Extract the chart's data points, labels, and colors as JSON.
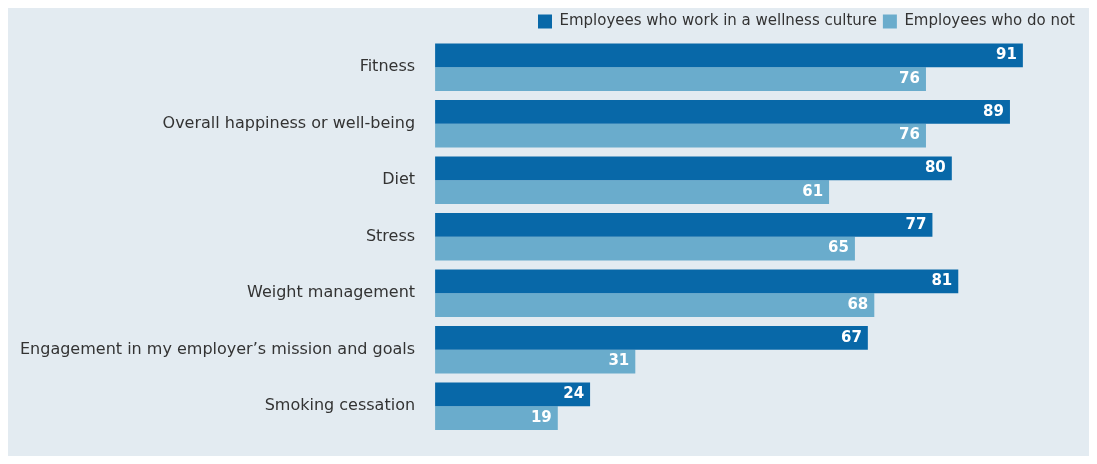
{
  "chart_data": {
    "type": "bar",
    "orientation": "horizontal",
    "data_labels": true,
    "legend": "top right",
    "categories": [
      "Fitness",
      "Overall happiness or well-being",
      "Diet",
      "Stress",
      "Weight management",
      "Engagement in my employer’s mission and goals",
      "Smoking cessation"
    ],
    "series": [
      {
        "name": "Employees who work in a wellness culture",
        "color": "#0868a8",
        "values": [
          91,
          89,
          80,
          77,
          81,
          67,
          24
        ]
      },
      {
        "name": "Employees who do not",
        "color": "#6aaccc",
        "values": [
          76,
          76,
          61,
          65,
          68,
          31,
          19
        ]
      }
    ]
  }
}
